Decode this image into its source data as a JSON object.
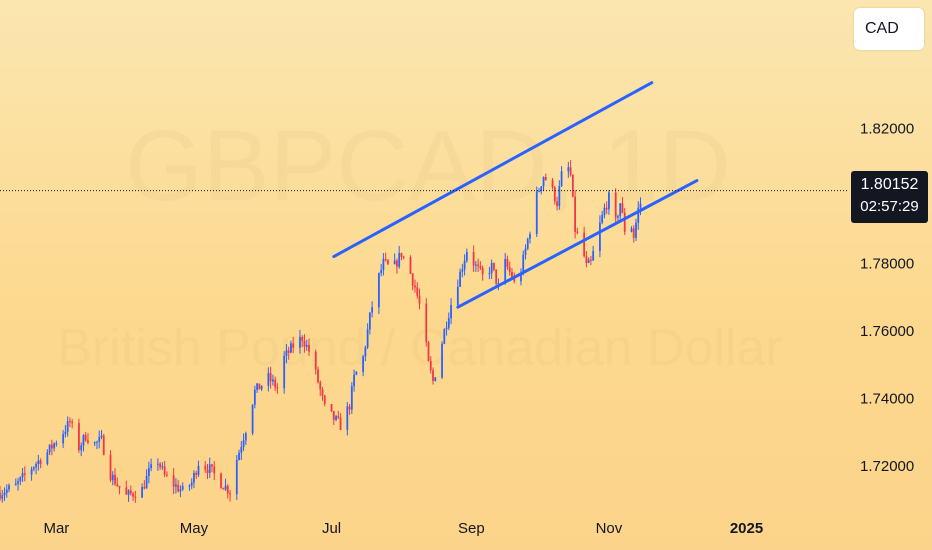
{
  "currency_label": "CAD",
  "watermark": {
    "symbol": "GBPCAD, 1D",
    "description": "British Pound / Canadian Dollar"
  },
  "last_price": {
    "value": "1.80152",
    "countdown": "02:57:29"
  },
  "colors": {
    "up": "#2962ff",
    "down": "#f23645",
    "channel": "#2962ff"
  },
  "chart_data": {
    "type": "candlestick",
    "y_ticks": [
      "1.82000",
      "1.80000",
      "1.78000",
      "1.76000",
      "1.74000",
      "1.72000"
    ],
    "y_tick_values": [
      1.82,
      1.8,
      1.78,
      1.76,
      1.74,
      1.72
    ],
    "ylim": [
      1.709,
      1.858
    ],
    "x_ticks": [
      {
        "label": "Mar",
        "date": "2024-03-01"
      },
      {
        "label": "May",
        "date": "2024-05-01"
      },
      {
        "label": "Jul",
        "date": "2024-07-01"
      },
      {
        "label": "Sep",
        "date": "2024-09-01"
      },
      {
        "label": "Nov",
        "date": "2024-11-01"
      },
      {
        "label": "2025",
        "date": "2025-01-01"
      }
    ],
    "xlim": [
      "2024-02-05",
      "2025-02-15"
    ],
    "last_close": 1.80152,
    "trend_channel": [
      {
        "role": "upper",
        "start": {
          "date": "2024-07-02",
          "price": 1.782
        },
        "end": {
          "date": "2024-11-20",
          "price": 1.8335
        }
      },
      {
        "role": "lower",
        "start": {
          "date": "2024-08-26",
          "price": 1.767
        },
        "end": {
          "date": "2024-12-10",
          "price": 1.8045
        }
      }
    ],
    "price_path": [
      [
        "2024-02-05",
        1.712
      ],
      [
        "2024-02-12",
        1.714
      ],
      [
        "2024-02-19",
        1.7195
      ],
      [
        "2024-02-26",
        1.724
      ],
      [
        "2024-03-04",
        1.73
      ],
      [
        "2024-03-07",
        1.733
      ],
      [
        "2024-03-11",
        1.7255
      ],
      [
        "2024-03-14",
        1.729
      ],
      [
        "2024-03-18",
        1.7265
      ],
      [
        "2024-03-21",
        1.7275
      ],
      [
        "2024-03-25",
        1.7175
      ],
      [
        "2024-03-28",
        1.7145
      ],
      [
        "2024-04-01",
        1.711
      ],
      [
        "2024-04-08",
        1.713
      ],
      [
        "2024-04-11",
        1.718
      ],
      [
        "2024-04-15",
        1.7215
      ],
      [
        "2024-04-18",
        1.717
      ],
      [
        "2024-04-22",
        1.7145
      ],
      [
        "2024-04-26",
        1.7125
      ],
      [
        "2024-04-30",
        1.715
      ],
      [
        "2024-05-03",
        1.721
      ],
      [
        "2024-05-08",
        1.719
      ],
      [
        "2024-05-13",
        1.715
      ],
      [
        "2024-05-17",
        1.7125
      ],
      [
        "2024-05-20",
        1.722
      ],
      [
        "2024-05-24",
        1.731
      ],
      [
        "2024-05-28",
        1.742
      ],
      [
        "2024-06-03",
        1.746
      ],
      [
        "2024-06-07",
        1.743
      ],
      [
        "2024-06-10",
        1.752
      ],
      [
        "2024-06-14",
        1.7555
      ],
      [
        "2024-06-18",
        1.758
      ],
      [
        "2024-06-21",
        1.754
      ],
      [
        "2024-06-25",
        1.745
      ],
      [
        "2024-06-28",
        1.737
      ],
      [
        "2024-07-02",
        1.734
      ],
      [
        "2024-07-05",
        1.732
      ],
      [
        "2024-07-09",
        1.738
      ],
      [
        "2024-07-11",
        1.746
      ],
      [
        "2024-07-15",
        1.752
      ],
      [
        "2024-07-18",
        1.764
      ],
      [
        "2024-07-21",
        1.774
      ],
      [
        "2024-07-24",
        1.78
      ],
      [
        "2024-07-28",
        1.778
      ],
      [
        "2024-08-01",
        1.783
      ],
      [
        "2024-08-04",
        1.779
      ],
      [
        "2024-08-07",
        1.773
      ],
      [
        "2024-08-10",
        1.765
      ],
      [
        "2024-08-13",
        1.75
      ],
      [
        "2024-08-15",
        1.745
      ],
      [
        "2024-08-17",
        1.75
      ],
      [
        "2024-08-20",
        1.76
      ],
      [
        "2024-08-23",
        1.768
      ],
      [
        "2024-08-27",
        1.777
      ],
      [
        "2024-08-30",
        1.784
      ],
      [
        "2024-09-03",
        1.779
      ],
      [
        "2024-09-06",
        1.776
      ],
      [
        "2024-09-10",
        1.779
      ],
      [
        "2024-09-13",
        1.773
      ],
      [
        "2024-09-16",
        1.78
      ],
      [
        "2024-09-19",
        1.776
      ],
      [
        "2024-09-21",
        1.772
      ],
      [
        "2024-09-24",
        1.781
      ],
      [
        "2024-09-27",
        1.79
      ],
      [
        "2024-09-30",
        1.8
      ],
      [
        "2024-10-03",
        1.806
      ],
      [
        "2024-10-06",
        1.803
      ],
      [
        "2024-10-09",
        1.798
      ],
      [
        "2024-10-11",
        1.806
      ],
      [
        "2024-10-13",
        1.81
      ],
      [
        "2024-10-15",
        1.806
      ],
      [
        "2024-10-17",
        1.79
      ],
      [
        "2024-10-20",
        1.785
      ],
      [
        "2024-10-22",
        1.779
      ],
      [
        "2024-10-24",
        1.78
      ],
      [
        "2024-10-27",
        1.789
      ],
      [
        "2024-10-30",
        1.796
      ],
      [
        "2024-11-02",
        1.801
      ],
      [
        "2024-11-04",
        1.792
      ],
      [
        "2024-11-06",
        1.798
      ],
      [
        "2024-11-08",
        1.79
      ],
      [
        "2024-11-10",
        1.794
      ],
      [
        "2024-11-12",
        1.788
      ],
      [
        "2024-11-14",
        1.796
      ],
      [
        "2024-11-17",
        1.8015
      ]
    ]
  }
}
